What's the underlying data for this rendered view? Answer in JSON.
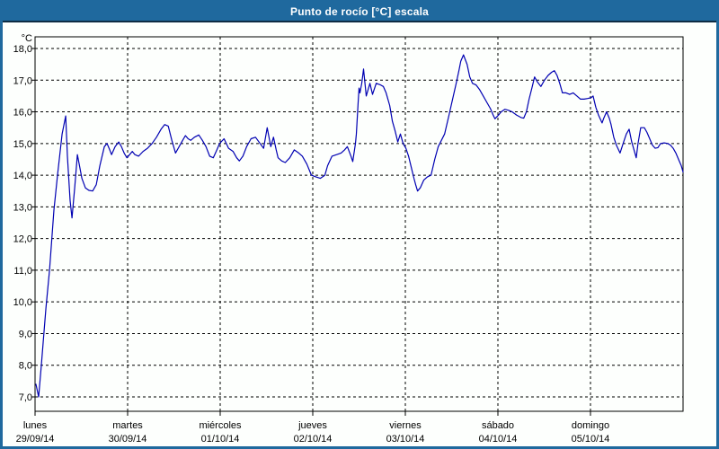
{
  "window": {
    "title": "Punto de rocío [°C] escala"
  },
  "colors": {
    "frame": "#1f699e",
    "titlebar_bg": "#1f699e",
    "titlebar_border": "#0d2c44",
    "title_text": "#ffffff",
    "panel_bg": "#fdfffd",
    "plot_border": "#000000",
    "grid": "#000000",
    "axis_text": "#000000",
    "series_line": "#0000b2"
  },
  "chart_data": {
    "type": "line",
    "title": "Punto de rocío [°C] escala",
    "grid": "dashed",
    "legend": "none",
    "y_axis": {
      "label": "°C",
      "min": 7.0,
      "max": 18.0,
      "tick_step": 1.0,
      "tick_labels": [
        "18,0",
        "17,0",
        "16,0",
        "15,0",
        "14,0",
        "13,0",
        "12,0",
        "11,0",
        "10,0",
        "9,0",
        "8,0",
        "7,0"
      ]
    },
    "x_axis": {
      "span_days": 7,
      "days": [
        {
          "name": "lunes",
          "date": "29/09/14"
        },
        {
          "name": "martes",
          "date": "30/09/14"
        },
        {
          "name": "miércoles",
          "date": "01/10/14"
        },
        {
          "name": "jueves",
          "date": "02/10/14"
        },
        {
          "name": "viernes",
          "date": "03/10/14"
        },
        {
          "name": "sábado",
          "date": "04/10/14"
        },
        {
          "name": "domingo",
          "date": "05/10/14"
        }
      ]
    },
    "series": [
      {
        "name": "Punto de rocío [°C]",
        "color": "#0000b2",
        "points": [
          [
            0.01,
            7.4
          ],
          [
            0.039,
            7.0
          ],
          [
            0.068,
            8.0
          ],
          [
            0.117,
            9.8
          ],
          [
            0.156,
            11.0
          ],
          [
            0.204,
            12.9
          ],
          [
            0.243,
            14.0
          ],
          [
            0.292,
            15.3
          ],
          [
            0.331,
            15.87
          ],
          [
            0.35,
            14.6
          ],
          [
            0.379,
            13.2
          ],
          [
            0.399,
            12.65
          ],
          [
            0.428,
            13.6
          ],
          [
            0.457,
            14.65
          ],
          [
            0.486,
            14.2
          ],
          [
            0.506,
            13.9
          ],
          [
            0.544,
            13.6
          ],
          [
            0.583,
            13.52
          ],
          [
            0.622,
            13.5
          ],
          [
            0.661,
            13.7
          ],
          [
            0.7,
            14.3
          ],
          [
            0.749,
            14.9
          ],
          [
            0.778,
            15.0
          ],
          [
            0.807,
            14.8
          ],
          [
            0.826,
            14.65
          ],
          [
            0.865,
            14.9
          ],
          [
            0.904,
            15.05
          ],
          [
            0.933,
            14.9
          ],
          [
            0.962,
            14.7
          ],
          [
            0.992,
            14.55
          ],
          [
            1.021,
            14.65
          ],
          [
            1.05,
            14.75
          ],
          [
            1.079,
            14.65
          ],
          [
            1.118,
            14.6
          ],
          [
            1.167,
            14.75
          ],
          [
            1.215,
            14.85
          ],
          [
            1.264,
            15.0
          ],
          [
            1.312,
            15.2
          ],
          [
            1.361,
            15.45
          ],
          [
            1.4,
            15.6
          ],
          [
            1.439,
            15.55
          ],
          [
            1.478,
            15.1
          ],
          [
            1.517,
            14.7
          ],
          [
            1.556,
            14.9
          ],
          [
            1.594,
            15.1
          ],
          [
            1.624,
            15.25
          ],
          [
            1.653,
            15.15
          ],
          [
            1.682,
            15.1
          ],
          [
            1.721,
            15.2
          ],
          [
            1.769,
            15.27
          ],
          [
            1.808,
            15.1
          ],
          [
            1.847,
            14.9
          ],
          [
            1.886,
            14.6
          ],
          [
            1.925,
            14.55
          ],
          [
            1.964,
            14.8
          ],
          [
            1.993,
            15.0
          ],
          [
            2.042,
            15.15
          ],
          [
            2.09,
            14.85
          ],
          [
            2.139,
            14.75
          ],
          [
            2.178,
            14.55
          ],
          [
            2.207,
            14.45
          ],
          [
            2.246,
            14.6
          ],
          [
            2.285,
            14.9
          ],
          [
            2.333,
            15.15
          ],
          [
            2.382,
            15.2
          ],
          [
            2.431,
            15.0
          ],
          [
            2.469,
            14.85
          ],
          [
            2.508,
            15.5
          ],
          [
            2.547,
            14.9
          ],
          [
            2.576,
            15.2
          ],
          [
            2.605,
            14.8
          ],
          [
            2.625,
            14.55
          ],
          [
            2.664,
            14.45
          ],
          [
            2.703,
            14.4
          ],
          [
            2.751,
            14.55
          ],
          [
            2.8,
            14.8
          ],
          [
            2.849,
            14.7
          ],
          [
            2.887,
            14.6
          ],
          [
            2.936,
            14.35
          ],
          [
            2.985,
            14.0
          ],
          [
            3.033,
            13.95
          ],
          [
            3.082,
            13.9
          ],
          [
            3.131,
            14.0
          ],
          [
            3.16,
            14.3
          ],
          [
            3.208,
            14.6
          ],
          [
            3.257,
            14.65
          ],
          [
            3.306,
            14.7
          ],
          [
            3.344,
            14.8
          ],
          [
            3.374,
            14.9
          ],
          [
            3.413,
            14.6
          ],
          [
            3.432,
            14.43
          ],
          [
            3.461,
            15.0
          ],
          [
            3.471,
            15.3
          ],
          [
            3.49,
            16.3
          ],
          [
            3.5,
            16.75
          ],
          [
            3.51,
            16.6
          ],
          [
            3.529,
            16.9
          ],
          [
            3.549,
            17.35
          ],
          [
            3.578,
            16.5
          ],
          [
            3.617,
            16.9
          ],
          [
            3.646,
            16.55
          ],
          [
            3.685,
            16.9
          ],
          [
            3.733,
            16.85
          ],
          [
            3.762,
            16.8
          ],
          [
            3.792,
            16.6
          ],
          [
            3.831,
            16.2
          ],
          [
            3.86,
            15.7
          ],
          [
            3.889,
            15.4
          ],
          [
            3.918,
            15.05
          ],
          [
            3.947,
            15.3
          ],
          [
            3.976,
            15.0
          ],
          [
            4.006,
            14.85
          ],
          [
            4.035,
            14.6
          ],
          [
            4.064,
            14.25
          ],
          [
            4.093,
            13.9
          ],
          [
            4.112,
            13.7
          ],
          [
            4.132,
            13.5
          ],
          [
            4.161,
            13.6
          ],
          [
            4.2,
            13.85
          ],
          [
            4.239,
            13.95
          ],
          [
            4.278,
            14.0
          ],
          [
            4.317,
            14.5
          ],
          [
            4.355,
            14.9
          ],
          [
            4.424,
            15.3
          ],
          [
            4.472,
            15.9
          ],
          [
            4.511,
            16.4
          ],
          [
            4.55,
            16.9
          ],
          [
            4.579,
            17.3
          ],
          [
            4.599,
            17.6
          ],
          [
            4.628,
            17.8
          ],
          [
            4.667,
            17.5
          ],
          [
            4.696,
            17.1
          ],
          [
            4.725,
            16.9
          ],
          [
            4.764,
            16.85
          ],
          [
            4.803,
            16.7
          ],
          [
            4.842,
            16.5
          ],
          [
            4.881,
            16.3
          ],
          [
            4.919,
            16.1
          ],
          [
            4.949,
            15.9
          ],
          [
            4.968,
            15.78
          ],
          [
            5.007,
            15.9
          ],
          [
            5.036,
            16.0
          ],
          [
            5.075,
            16.08
          ],
          [
            5.114,
            16.05
          ],
          [
            5.153,
            16.0
          ],
          [
            5.201,
            15.9
          ],
          [
            5.25,
            15.82
          ],
          [
            5.279,
            15.8
          ],
          [
            5.308,
            16.0
          ],
          [
            5.337,
            16.4
          ],
          [
            5.367,
            16.75
          ],
          [
            5.396,
            17.1
          ],
          [
            5.425,
            16.95
          ],
          [
            5.464,
            16.8
          ],
          [
            5.503,
            17.0
          ],
          [
            5.542,
            17.15
          ],
          [
            5.58,
            17.25
          ],
          [
            5.61,
            17.3
          ],
          [
            5.639,
            17.15
          ],
          [
            5.668,
            16.9
          ],
          [
            5.697,
            16.6
          ],
          [
            5.736,
            16.6
          ],
          [
            5.775,
            16.55
          ],
          [
            5.814,
            16.6
          ],
          [
            5.853,
            16.5
          ],
          [
            5.892,
            16.4
          ],
          [
            5.931,
            16.4
          ],
          [
            5.969,
            16.42
          ],
          [
            6.008,
            16.45
          ],
          [
            6.028,
            16.5
          ],
          [
            6.057,
            16.15
          ],
          [
            6.086,
            15.9
          ],
          [
            6.125,
            15.65
          ],
          [
            6.144,
            15.8
          ],
          [
            6.174,
            16.0
          ],
          [
            6.203,
            15.8
          ],
          [
            6.222,
            15.6
          ],
          [
            6.251,
            15.2
          ],
          [
            6.28,
            14.95
          ],
          [
            6.319,
            14.7
          ],
          [
            6.358,
            15.05
          ],
          [
            6.387,
            15.3
          ],
          [
            6.417,
            15.45
          ],
          [
            6.446,
            15.05
          ],
          [
            6.475,
            14.75
          ],
          [
            6.494,
            14.55
          ],
          [
            6.514,
            15.0
          ],
          [
            6.543,
            15.5
          ],
          [
            6.582,
            15.5
          ],
          [
            6.611,
            15.35
          ],
          [
            6.64,
            15.15
          ],
          [
            6.669,
            14.95
          ],
          [
            6.699,
            14.85
          ],
          [
            6.728,
            14.87
          ],
          [
            6.757,
            15.0
          ],
          [
            6.796,
            15.02
          ],
          [
            6.835,
            15.0
          ],
          [
            6.864,
            14.95
          ],
          [
            6.893,
            14.85
          ],
          [
            6.922,
            14.7
          ],
          [
            6.951,
            14.5
          ],
          [
            6.981,
            14.3
          ],
          [
            7.0,
            14.1
          ]
        ]
      }
    ]
  }
}
